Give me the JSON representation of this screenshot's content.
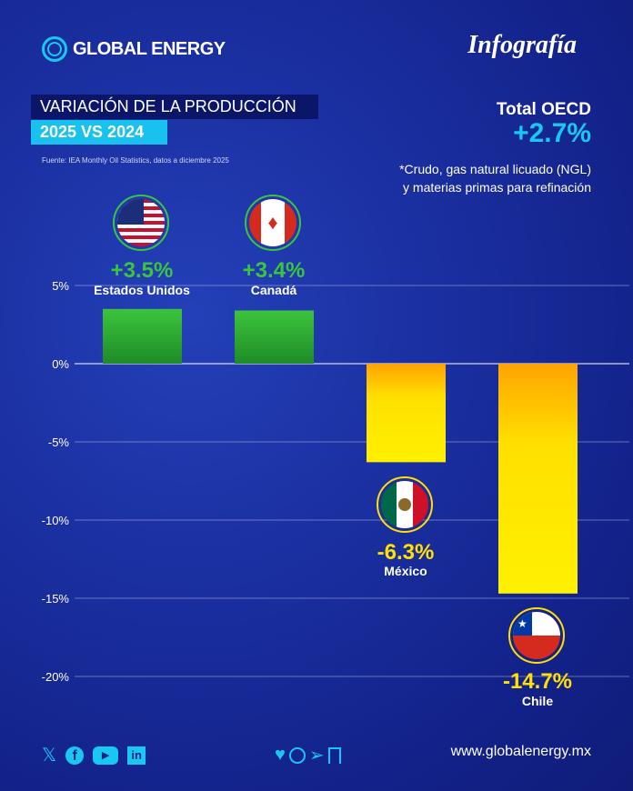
{
  "brand": {
    "name": "GLOBAL ENERGY",
    "tag": "Infografía"
  },
  "title": {
    "line1": "VARIACIÓN DE LA PRODUCCIÓN",
    "line2": "2025 VS 2024"
  },
  "source": "Fuente: IEA Monthly Oil Statistics, datos a diciembre 2025",
  "total": {
    "label": "Total OECD",
    "value": "+2.7%"
  },
  "note": {
    "line1": "*Crudo, gas natural licuado (NGL)",
    "line2": "y materias primas para refinación"
  },
  "colors": {
    "positive": "#3cc43c",
    "negative": "#ffe000",
    "accent": "#19c8f0"
  },
  "chart_data": {
    "type": "bar",
    "categories": [
      "Estados Unidos",
      "Canadá",
      "México",
      "Chile"
    ],
    "values": [
      3.5,
      3.4,
      -6.3,
      -14.7
    ],
    "value_labels": [
      "+3.5%",
      "+3.4%",
      "-6.3%",
      "-14.7%"
    ],
    "yticks": [
      5,
      0,
      -5,
      -10,
      -15,
      -20
    ],
    "ytick_labels": [
      "5%",
      "0%",
      "-5%",
      "-10%",
      "-15%",
      "-20%"
    ],
    "ylim": [
      -20,
      5
    ],
    "grid": true,
    "title": "",
    "xlabel": "",
    "ylabel": ""
  },
  "footer": {
    "url": "www.globalenergy.mx",
    "social": [
      "x-icon",
      "facebook-icon",
      "youtube-icon",
      "linkedin-icon"
    ],
    "actions": [
      "heart-icon",
      "comment-icon",
      "send-icon",
      "bookmark-icon"
    ]
  }
}
